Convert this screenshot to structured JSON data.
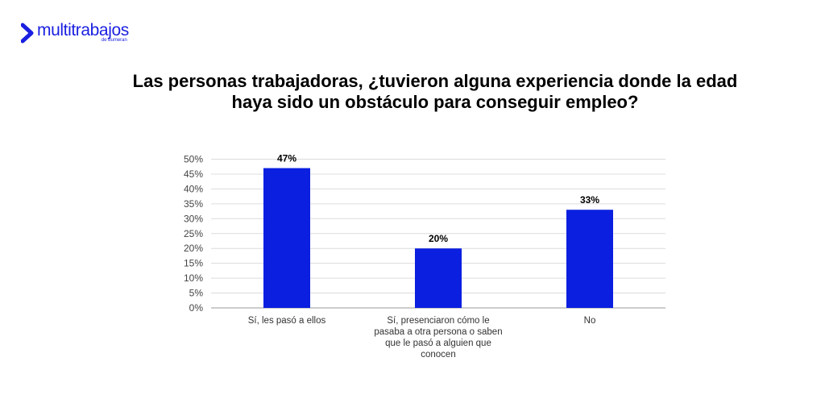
{
  "brand": {
    "name": "multitrabajos",
    "subtitle": "de bumeran",
    "color": "#1a1fe0"
  },
  "chart_data": {
    "type": "bar",
    "title_lines": [
      "Las personas trabajadoras, ¿tuvieron alguna experiencia donde la edad",
      "haya sido un obstáculo para conseguir empleo?"
    ],
    "categories": [
      [
        "Sí, les pasó a ellos"
      ],
      [
        "Sí, presenciaron cómo le",
        "pasaba a otra persona o saben",
        "que le pasó a alguien que",
        "conocen"
      ],
      [
        "No"
      ]
    ],
    "values": [
      47,
      20,
      33
    ],
    "data_labels": [
      "47%",
      "20%",
      "33%"
    ],
    "y_ticks": [
      "0%",
      "5%",
      "10%",
      "15%",
      "20%",
      "25%",
      "30%",
      "35%",
      "40%",
      "45%",
      "50%"
    ],
    "ylim": [
      0,
      50
    ],
    "bar_color": "#0a1fe0",
    "grid": true,
    "legend": "none"
  }
}
